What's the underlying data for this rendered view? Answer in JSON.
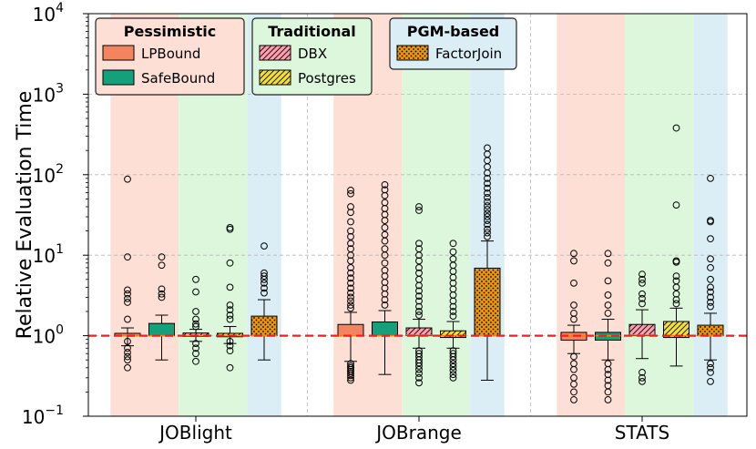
{
  "chart_data": {
    "type": "boxplot",
    "yscale": "log",
    "ylabel": "Relative Evaluation Time",
    "ylim": [
      0.1,
      10000
    ],
    "yticks": [
      {
        "value": 0.1,
        "base": "10",
        "exp": "−1"
      },
      {
        "value": 1,
        "base": "10",
        "exp": "0"
      },
      {
        "value": 10,
        "base": "10",
        "exp": "1"
      },
      {
        "value": 100,
        "base": "10",
        "exp": "2"
      },
      {
        "value": 1000,
        "base": "10",
        "exp": "3"
      },
      {
        "value": 10000,
        "base": "10",
        "exp": "4"
      }
    ],
    "reference_line": 1,
    "categories": [
      "JOBlight",
      "JOBrange",
      "STATS"
    ],
    "legend": {
      "groups": [
        {
          "title": "Pessimistic",
          "entries": [
            {
              "label": "LPBound",
              "color": "#f4845f",
              "hatch": "none"
            },
            {
              "label": "SafeBound",
              "color": "#13a07a",
              "hatch": "none"
            }
          ]
        },
        {
          "title": "Traditional",
          "entries": [
            {
              "label": "DBX",
              "color": "#f9a0b0",
              "hatch": "diag"
            },
            {
              "label": "Postgres",
              "color": "#f2df3c",
              "hatch": "diag"
            }
          ]
        },
        {
          "title": "PGM-based",
          "entries": [
            {
              "label": "FactorJoin",
              "color": "#e8960c",
              "hatch": "dots"
            }
          ]
        }
      ]
    },
    "group_backgrounds": {
      "Pessimistic": "#fddfd5",
      "Traditional": "#dcf7dc",
      "PGM-based": "#dbeef6"
    },
    "series": [
      {
        "name": "LPBound",
        "group": "Pessimistic",
        "color": "#f4845f",
        "hatch": "none",
        "stats": [
          {
            "category": "JOBlight",
            "whislo": 0.75,
            "q1": 1.0,
            "med": 1.0,
            "q3": 1.07,
            "whishi": 1.25,
            "outliers": [
              88,
              9.5,
              3.7,
              3.3,
              2.9,
              2.6,
              1.6,
              0.85,
              0.7,
              0.62,
              0.55,
              0.5,
              0.4
            ]
          },
          {
            "category": "JOBrange",
            "whislo": 0.48,
            "q1": 1.0,
            "med": 1.0,
            "q3": 1.38,
            "whishi": 1.95,
            "outliers": [
              64,
              58,
              40,
              34,
              26,
              20,
              17,
              14,
              12,
              10,
              8.5,
              7,
              6,
              5.2,
              4.5,
              3.9,
              3.4,
              3.0,
              2.7,
              2.4,
              2.2,
              0.45,
              0.42,
              0.4,
              0.38,
              0.36,
              0.34,
              0.32,
              0.3,
              0.28
            ]
          },
          {
            "category": "STATS",
            "whislo": 0.6,
            "q1": 0.88,
            "med": 1.0,
            "q3": 1.1,
            "whishi": 1.35,
            "outliers": [
              10.5,
              8.5,
              4.5,
              2.4,
              1.9,
              1.6,
              0.55,
              0.45,
              0.38,
              0.3,
              0.25,
              0.2,
              0.16
            ]
          }
        ]
      },
      {
        "name": "SafeBound",
        "group": "Pessimistic",
        "color": "#13a07a",
        "hatch": "none",
        "stats": [
          {
            "category": "JOBlight",
            "whislo": 0.5,
            "q1": 1.0,
            "med": 1.0,
            "q3": 1.42,
            "whishi": 1.8,
            "outliers": [
              9.5,
              7.5,
              3.8,
              3.3,
              3.0
            ]
          },
          {
            "category": "JOBrange",
            "whislo": 0.33,
            "q1": 1.0,
            "med": 1.0,
            "q3": 1.48,
            "whishi": 2.05,
            "outliers": [
              75,
              65,
              55,
              45,
              38,
              32,
              27,
              22,
              18,
              15,
              12,
              10,
              8,
              6.5,
              5.5,
              4.6,
              3.9,
              3.3,
              2.8,
              2.4
            ]
          },
          {
            "category": "STATS",
            "whislo": 0.5,
            "q1": 0.88,
            "med": 1.0,
            "q3": 1.1,
            "whishi": 1.6,
            "outliers": [
              10.5,
              8,
              4.8,
              3.2,
              2.4,
              1.9,
              0.45,
              0.38,
              0.33,
              0.28,
              0.24,
              0.2,
              0.16
            ]
          }
        ]
      },
      {
        "name": "DBX",
        "group": "Traditional",
        "color": "#f9a0b0",
        "hatch": "diag",
        "stats": [
          {
            "category": "JOBlight",
            "whislo": 0.85,
            "q1": 0.98,
            "med": 1.0,
            "q3": 1.08,
            "whishi": 1.2,
            "outliers": [
              5.0,
              3.5,
              2.0,
              1.6,
              1.4,
              1.3,
              0.8,
              0.7,
              0.6,
              0.48
            ]
          },
          {
            "category": "JOBrange",
            "whislo": 0.7,
            "q1": 1.0,
            "med": 1.02,
            "q3": 1.25,
            "whishi": 1.6,
            "outliers": [
              40,
              36,
              14,
              12,
              10,
              8.5,
              7,
              6,
              5,
              4.2,
              3.6,
              3.1,
              2.7,
              2.3,
              2.0,
              1.8,
              0.65,
              0.6,
              0.55,
              0.5,
              0.46,
              0.42,
              0.38,
              0.34,
              0.3,
              0.26
            ]
          },
          {
            "category": "STATS",
            "whislo": 0.52,
            "q1": 1.0,
            "med": 1.02,
            "q3": 1.38,
            "whishi": 2.1,
            "outliers": [
              5.8,
              5.0,
              4.5,
              3.3,
              2.9,
              2.5,
              0.35,
              0.3,
              0.27
            ]
          }
        ]
      },
      {
        "name": "Postgres",
        "group": "Traditional",
        "color": "#f2df3c",
        "hatch": "diag",
        "stats": [
          {
            "category": "JOBlight",
            "whislo": 0.8,
            "q1": 0.97,
            "med": 1.0,
            "q3": 1.07,
            "whishi": 1.3,
            "outliers": [
              22,
              21,
              8,
              4.0,
              2.4,
              2.1,
              1.8,
              1.6,
              0.85,
              0.75,
              0.65,
              0.4
            ]
          },
          {
            "category": "JOBrange",
            "whislo": 0.7,
            "q1": 0.95,
            "med": 1.0,
            "q3": 1.15,
            "whishi": 1.5,
            "outliers": [
              14,
              11,
              9,
              7.5,
              6.3,
              5.3,
              4.5,
              3.8,
              3.2,
              2.7,
              2.3,
              2.0,
              1.75,
              0.65,
              0.6,
              0.55,
              0.5,
              0.45,
              0.41,
              0.37,
              0.33,
              0.3
            ]
          },
          {
            "category": "STATS",
            "whislo": 0.42,
            "q1": 0.95,
            "med": 1.0,
            "q3": 1.5,
            "whishi": 2.2,
            "outliers": [
              380,
              42,
              8.5,
              8.2,
              5.5,
              4.8,
              4.0,
              3.3,
              2.8,
              2.5
            ]
          }
        ]
      },
      {
        "name": "FactorJoin",
        "group": "PGM-based",
        "color": "#e8960c",
        "hatch": "dots",
        "stats": [
          {
            "category": "JOBlight",
            "whislo": 0.5,
            "q1": 1.0,
            "med": 1.0,
            "q3": 1.75,
            "whishi": 2.8,
            "outliers": [
              13,
              6.0,
              5.5,
              5.0,
              4.5,
              3.9,
              3.4
            ]
          },
          {
            "category": "JOBrange",
            "whislo": 0.28,
            "q1": 1.0,
            "med": 1.0,
            "q3": 6.9,
            "whishi": 15,
            "outliers": [
              215,
              180,
              150,
              125,
              105,
              90,
              78,
              68,
              59,
              52,
              46,
              41,
              37,
              33,
              30,
              27,
              24,
              21,
              19,
              17
            ]
          },
          {
            "category": "STATS",
            "whislo": 0.5,
            "q1": 1.0,
            "med": 1.0,
            "q3": 1.35,
            "whishi": 1.9,
            "outliers": [
              90,
              27,
              26,
              16,
              9,
              7,
              5,
              4,
              3.5,
              3.0,
              2.6,
              2.3,
              0.45,
              0.4,
              0.35,
              0.27
            ]
          }
        ]
      }
    ]
  }
}
